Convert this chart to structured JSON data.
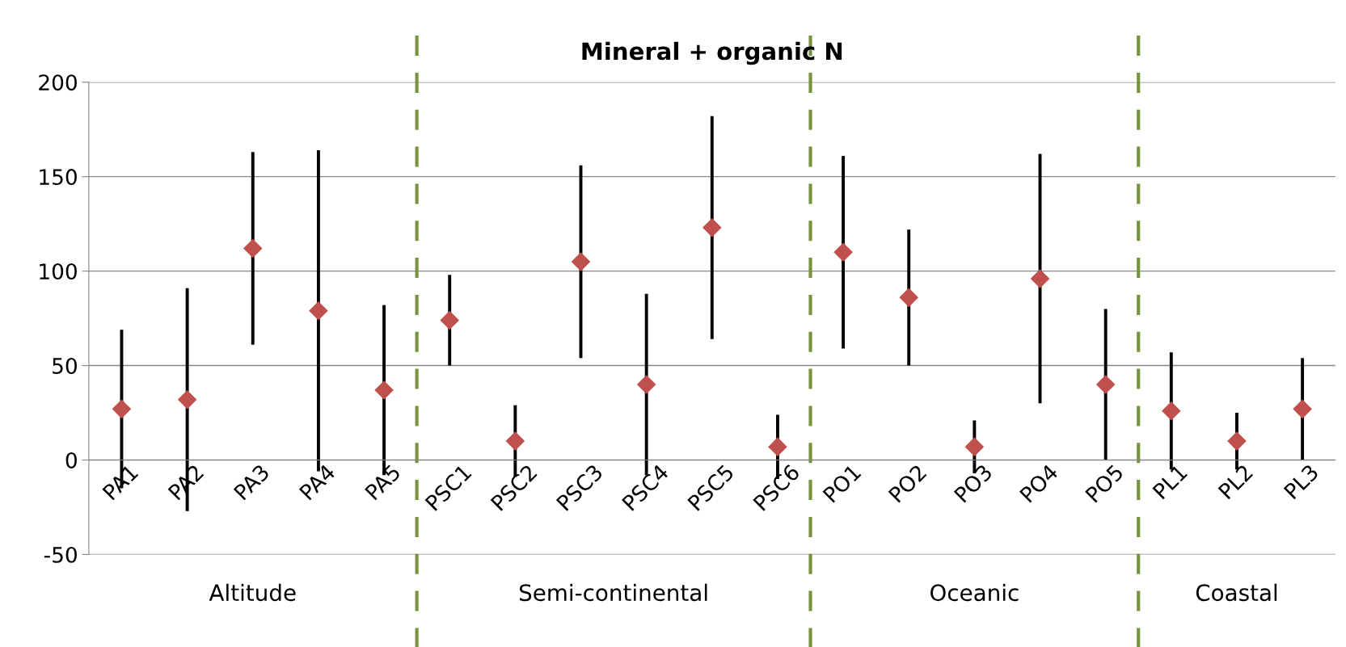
{
  "chart_data": {
    "type": "scatter",
    "title": "Mineral + organic N",
    "categories": [
      "PA1",
      "PA2",
      "PA3",
      "PA4",
      "PA5",
      "PSC1",
      "PSC2",
      "PSC3",
      "PSC4",
      "PSC5",
      "PSC6",
      "PO1",
      "PO2",
      "PO3",
      "PO4",
      "PO5",
      "PL1",
      "PL2",
      "PL3"
    ],
    "series": [
      {
        "color": "#c0504d",
        "values": [
          27,
          32,
          112,
          79,
          37,
          74,
          10,
          105,
          40,
          123,
          7,
          110,
          86,
          7,
          96,
          40,
          26,
          10,
          27
        ],
        "errors": [
          42,
          59,
          51,
          85,
          45,
          24,
          19,
          51,
          48,
          59,
          17,
          51,
          36,
          14,
          66,
          40,
          31,
          15,
          27
        ]
      }
    ],
    "ylim": [
      -50,
      200
    ],
    "yticks": [
      -50,
      0,
      50,
      100,
      150,
      200
    ],
    "grid": "y",
    "marker": "diamond",
    "annotations": [
      "Altitude",
      "Semi-continental",
      "Oceanic",
      "Coastal"
    ]
  }
}
